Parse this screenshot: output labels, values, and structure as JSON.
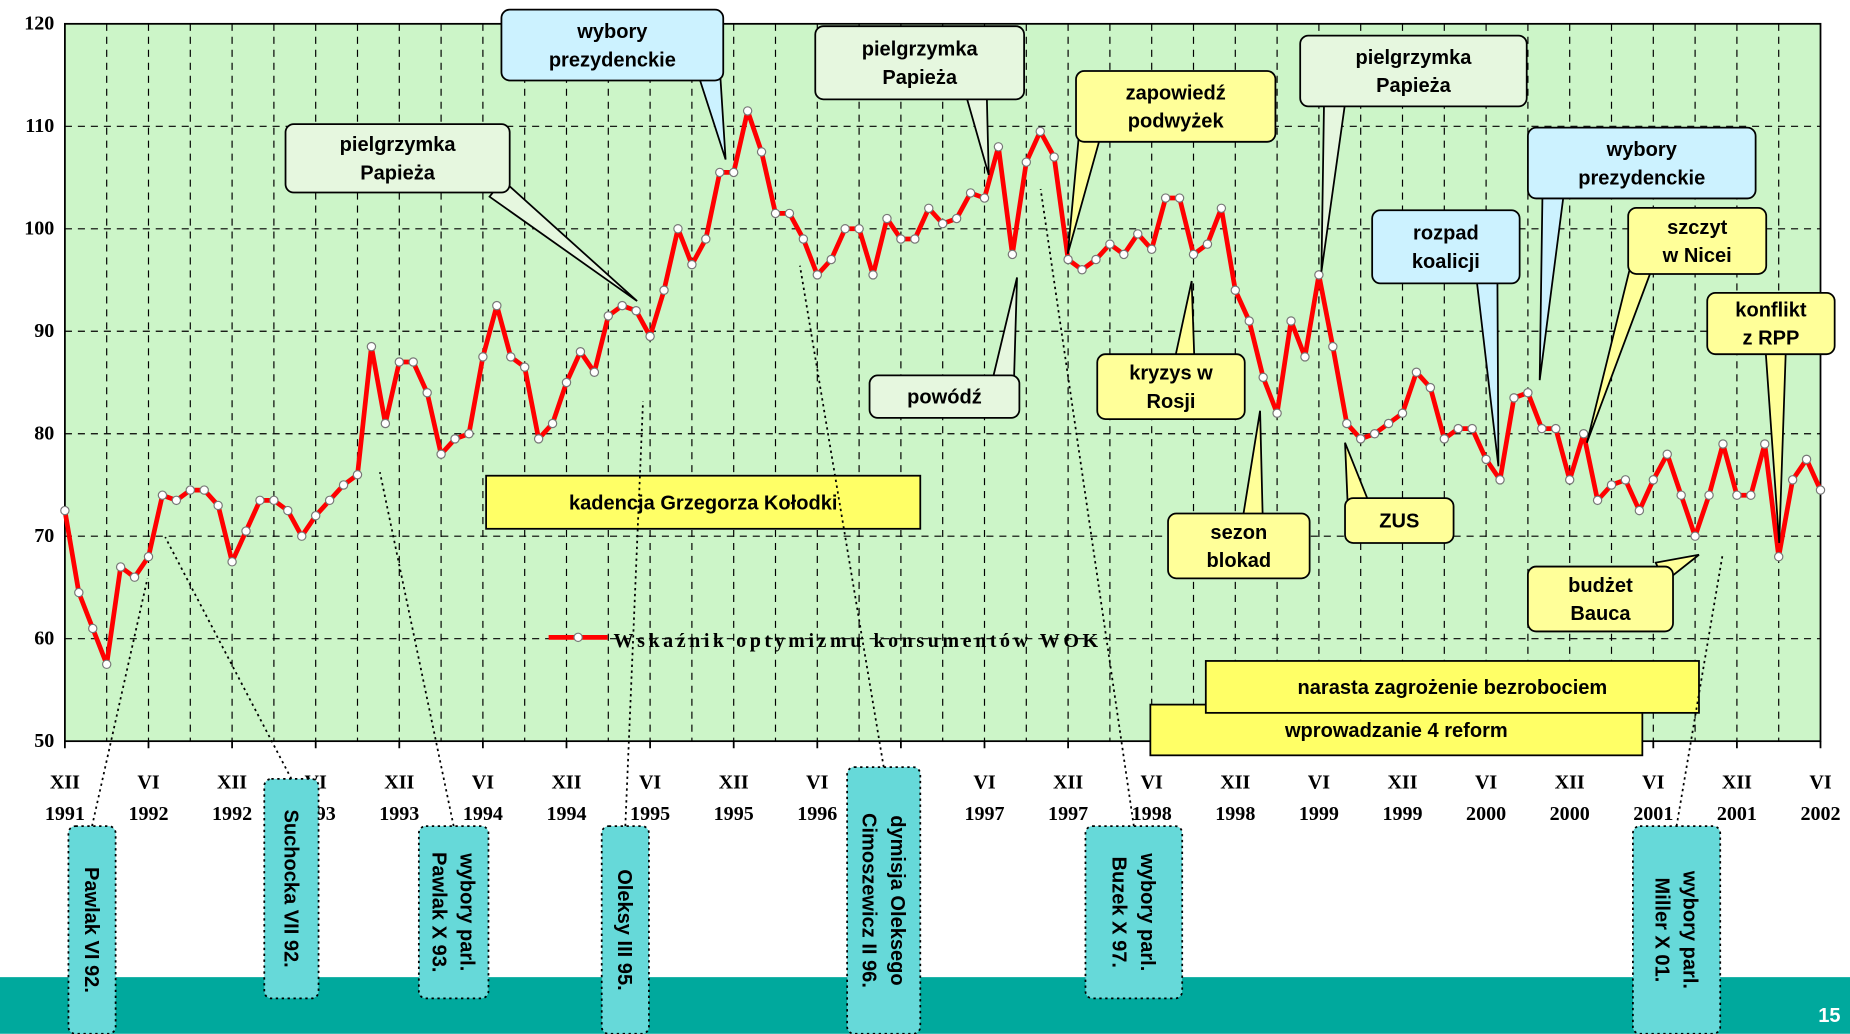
{
  "chart_data": {
    "type": "line",
    "categories": [
      "XII 1991",
      null,
      null,
      null,
      null,
      null,
      "VI 1992",
      null,
      null,
      null,
      null,
      null,
      "XII 1992",
      null,
      null,
      null,
      null,
      null,
      "VI 1993",
      null,
      null,
      null,
      null,
      null,
      "XII 1993",
      null,
      null,
      null,
      null,
      null,
      "VI 1994",
      null,
      null,
      null,
      null,
      null,
      "XII 1994",
      null,
      null,
      null,
      null,
      null,
      "VI 1995",
      null,
      null,
      null,
      null,
      null,
      "XII 1995",
      null,
      null,
      null,
      null,
      null,
      "VI 1996",
      null,
      null,
      null,
      null,
      null,
      "XII 1996",
      null,
      null,
      null,
      null,
      null,
      "VI 1997",
      null,
      null,
      null,
      null,
      null,
      "XII 1997",
      null,
      null,
      null,
      null,
      null,
      "VI 1998",
      null,
      null,
      null,
      null,
      null,
      "XII 1998",
      null,
      null,
      null,
      null,
      null,
      "VI 1999",
      null,
      null,
      null,
      null,
      null,
      "XII 1999",
      null,
      null,
      null,
      null,
      null,
      "VI 2000",
      null,
      null,
      null,
      null,
      null,
      "XII 2000",
      null,
      null,
      null,
      null,
      null,
      "VI 2001",
      null,
      null,
      null,
      null,
      null,
      "XII 2001",
      null,
      null,
      null,
      null,
      null,
      "VI 2002"
    ],
    "series": [
      {
        "name": "Wskaźnik optymizmu konsumentów WOK",
        "color": "#ff0000",
        "values": [
          72.5,
          64.5,
          61,
          57.5,
          67,
          66,
          68,
          74,
          73.5,
          74.5,
          74.5,
          73,
          67.5,
          70.5,
          73.5,
          73.5,
          72.5,
          70,
          72,
          73.5,
          75,
          76,
          88.5,
          81,
          87,
          87,
          84,
          78,
          79.5,
          80,
          87.5,
          92.5,
          87.5,
          86.5,
          79.5,
          81,
          85,
          88,
          86,
          91.5,
          92.5,
          92,
          89.5,
          94,
          100,
          96.5,
          99,
          105.5,
          105.5,
          111.5,
          107.5,
          101.5,
          101.5,
          99,
          95.5,
          97,
          100,
          100,
          95.5,
          101,
          99,
          99,
          102,
          100.5,
          101,
          103.5,
          103,
          108,
          97.5,
          106.5,
          109.5,
          107,
          97,
          96,
          97,
          98.5,
          97.5,
          99.5,
          98,
          103,
          103,
          97.5,
          98.5,
          102,
          94,
          91,
          85.5,
          82,
          91,
          87.5,
          95.5,
          88.5,
          81,
          79.5,
          80,
          81,
          82,
          86,
          84.5,
          79.5,
          80.5,
          80.5,
          77.5,
          75.5,
          83.5,
          84,
          80.5,
          80.5,
          75.5,
          80,
          73.5,
          75,
          75.5,
          72.5,
          75.5,
          78,
          74,
          70,
          74,
          79,
          74,
          74,
          79,
          68,
          75.5,
          77.5,
          74.5
        ]
      }
    ],
    "ylim": [
      50,
      120
    ],
    "yticks": [
      50,
      60,
      70,
      80,
      90,
      100,
      110,
      120
    ],
    "grid": true,
    "annotations": [
      {
        "text": [
          "pielgrzymka",
          "Papieża"
        ]
      },
      {
        "text": [
          "wybory",
          "prezydenckie"
        ]
      },
      {
        "text": [
          "pielgrzymka",
          "Papieża"
        ]
      },
      {
        "text": [
          "zapowiedź",
          "podwyżek"
        ]
      },
      {
        "text": [
          "pielgrzymka",
          "Papieża"
        ]
      },
      {
        "text": [
          "wybory",
          "prezydenckie"
        ]
      },
      {
        "text": [
          "rozpad",
          "koalicji"
        ]
      },
      {
        "text": [
          "szczyt",
          "w Nicei"
        ]
      },
      {
        "text": [
          "konflikt",
          "z RPP"
        ]
      },
      {
        "text": [
          "powódź"
        ]
      },
      {
        "text": [
          "kryzys w",
          "Rosji"
        ]
      },
      {
        "text": [
          "sezon",
          "blokad"
        ]
      },
      {
        "text": [
          "ZUS"
        ]
      },
      {
        "text": [
          "budżet",
          "Bauca"
        ]
      }
    ],
    "periods": [
      {
        "text": "kadencja Grzegorza Kołodki"
      },
      {
        "text": "wprowadzanie 4 reform"
      },
      {
        "text": "narasta zagrożenie bezrobociem"
      }
    ],
    "governments": [
      {
        "text": [
          "Pawlak VI 92."
        ]
      },
      {
        "text": [
          "Suchocka VII 92."
        ]
      },
      {
        "text": [
          "wybory parl.",
          "Pawlak X 93."
        ]
      },
      {
        "text": [
          "Oleksy III 95."
        ]
      },
      {
        "text": [
          "dymisja Oleksego",
          "Cimoszewicz II 96."
        ]
      },
      {
        "text": [
          "wybory parl.",
          "Buzek X 97."
        ]
      },
      {
        "text": [
          "wybory parl.",
          "Miller X 01."
        ]
      }
    ]
  },
  "page_number": "15"
}
